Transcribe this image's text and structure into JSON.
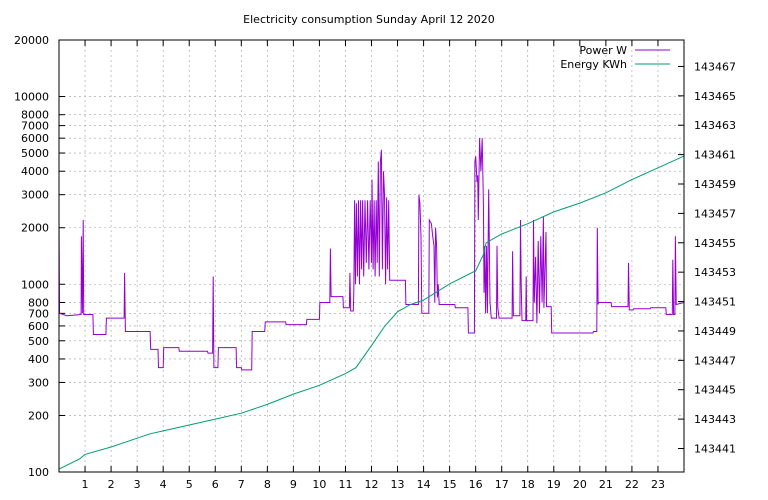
{
  "chart_data": {
    "type": "line",
    "title": "Electricity consumption Sunday April 12 2020",
    "xlabel": "",
    "ylabel": "",
    "xlim": [
      0,
      24
    ],
    "ylim": [
      100,
      20000
    ],
    "yscale": "log",
    "y2lim": [
      143439.4,
      143468.8
    ],
    "grid": true,
    "legend_position": "top-right",
    "x_ticks": [
      1,
      2,
      3,
      4,
      5,
      6,
      7,
      8,
      9,
      10,
      11,
      12,
      13,
      14,
      15,
      16,
      17,
      18,
      19,
      20,
      21,
      22,
      23
    ],
    "y_ticks": [
      {
        "value": 100,
        "label": "100"
      },
      {
        "value": 200,
        "label": "200"
      },
      {
        "value": 300,
        "label": "300"
      },
      {
        "value": 400,
        "label": "400"
      },
      {
        "value": 500,
        "label": "500"
      },
      {
        "value": 600,
        "label": "600"
      },
      {
        "value": 700,
        "label": "700"
      },
      {
        "value": 800,
        "label": "800"
      },
      {
        "value": 1000,
        "label": "1000"
      },
      {
        "value": 2000,
        "label": "2000"
      },
      {
        "value": 3000,
        "label": "3000"
      },
      {
        "value": 4000,
        "label": "4000"
      },
      {
        "value": 5000,
        "label": "5000"
      },
      {
        "value": 6000,
        "label": "6000"
      },
      {
        "value": 7000,
        "label": "7000"
      },
      {
        "value": 8000,
        "label": "8000"
      },
      {
        "value": 10000,
        "label": "10000"
      },
      {
        "value": 20000,
        "label": "20000"
      }
    ],
    "y2_ticks": [
      143441,
      143443,
      143445,
      143447,
      143449,
      143451,
      143453,
      143455,
      143457,
      143459,
      143461,
      143463,
      143465,
      143467
    ],
    "series": [
      {
        "name": "Power W",
        "axis": "left",
        "color": "#9400d3",
        "points": [
          [
            0,
            2200
          ],
          [
            0.02,
            700
          ],
          [
            0.3,
            680
          ],
          [
            0.85,
            690
          ],
          [
            0.86,
            1800
          ],
          [
            0.9,
            700
          ],
          [
            0.93,
            2200
          ],
          [
            0.95,
            690
          ],
          [
            1.3,
            690
          ],
          [
            1.32,
            540
          ],
          [
            1.8,
            540
          ],
          [
            1.82,
            660
          ],
          [
            2.5,
            660
          ],
          [
            2.52,
            1150
          ],
          [
            2.55,
            560
          ],
          [
            3.5,
            560
          ],
          [
            3.52,
            450
          ],
          [
            3.8,
            450
          ],
          [
            3.82,
            360
          ],
          [
            4.0,
            360
          ],
          [
            4.02,
            460
          ],
          [
            4.6,
            460
          ],
          [
            4.62,
            440
          ],
          [
            5.7,
            440
          ],
          [
            5.72,
            430
          ],
          [
            5.9,
            430
          ],
          [
            5.92,
            1100
          ],
          [
            5.95,
            360
          ],
          [
            6.1,
            360
          ],
          [
            6.12,
            460
          ],
          [
            6.8,
            460
          ],
          [
            6.82,
            360
          ],
          [
            7.0,
            360
          ],
          [
            7.02,
            350
          ],
          [
            7.4,
            350
          ],
          [
            7.42,
            560
          ],
          [
            7.9,
            560
          ],
          [
            7.92,
            630
          ],
          [
            8.7,
            630
          ],
          [
            8.72,
            610
          ],
          [
            9.5,
            610
          ],
          [
            9.52,
            650
          ],
          [
            10.0,
            650
          ],
          [
            10.02,
            800
          ],
          [
            10.4,
            800
          ],
          [
            10.42,
            1550
          ],
          [
            10.45,
            860
          ],
          [
            10.9,
            860
          ],
          [
            10.92,
            750
          ],
          [
            11.15,
            750
          ],
          [
            11.17,
            1150
          ],
          [
            11.2,
            720
          ],
          [
            11.3,
            720
          ],
          [
            11.32,
            900
          ],
          [
            11.35,
            2800
          ],
          [
            11.38,
            1000
          ],
          [
            11.42,
            2700
          ],
          [
            11.46,
            1100
          ],
          [
            11.5,
            2800
          ],
          [
            11.54,
            1000
          ],
          [
            11.58,
            2800
          ],
          [
            11.62,
            1200
          ],
          [
            11.66,
            2800
          ],
          [
            11.7,
            1100
          ],
          [
            11.75,
            2800
          ],
          [
            11.8,
            1300
          ],
          [
            11.85,
            2800
          ],
          [
            11.9,
            1200
          ],
          [
            11.95,
            2800
          ],
          [
            12.0,
            1300
          ],
          [
            12.02,
            3600
          ],
          [
            12.06,
            1200
          ],
          [
            12.1,
            2800
          ],
          [
            12.14,
            1100
          ],
          [
            12.18,
            2800
          ],
          [
            12.22,
            1300
          ],
          [
            12.26,
            4500
          ],
          [
            12.3,
            1100
          ],
          [
            12.34,
            4500
          ],
          [
            12.38,
            5200
          ],
          [
            12.42,
            1200
          ],
          [
            12.46,
            4000
          ],
          [
            12.5,
            3000
          ],
          [
            12.54,
            1000
          ],
          [
            12.58,
            2900
          ],
          [
            12.62,
            1200
          ],
          [
            12.66,
            2800
          ],
          [
            12.7,
            1050
          ],
          [
            13.3,
            1050
          ],
          [
            13.32,
            780
          ],
          [
            13.8,
            780
          ],
          [
            13.82,
            3000
          ],
          [
            13.86,
            2700
          ],
          [
            13.9,
            1800
          ],
          [
            13.93,
            700
          ],
          [
            14.2,
            700
          ],
          [
            14.22,
            2200
          ],
          [
            14.3,
            2100
          ],
          [
            14.35,
            1800
          ],
          [
            14.4,
            1600
          ],
          [
            14.43,
            800
          ],
          [
            14.46,
            2000
          ],
          [
            14.5,
            1600
          ],
          [
            14.53,
            850
          ],
          [
            14.56,
            1000
          ],
          [
            14.6,
            780
          ],
          [
            15.2,
            780
          ],
          [
            15.22,
            750
          ],
          [
            15.7,
            750
          ],
          [
            15.72,
            550
          ],
          [
            15.95,
            550
          ],
          [
            15.97,
            4500
          ],
          [
            16.0,
            4800
          ],
          [
            16.05,
            3500
          ],
          [
            16.08,
            3800
          ],
          [
            16.1,
            2200
          ],
          [
            16.15,
            6000
          ],
          [
            16.2,
            4000
          ],
          [
            16.25,
            6000
          ],
          [
            16.3,
            2500
          ],
          [
            16.32,
            900
          ],
          [
            16.35,
            1600
          ],
          [
            16.38,
            700
          ],
          [
            16.42,
            1600
          ],
          [
            16.45,
            700
          ],
          [
            16.5,
            3200
          ],
          [
            16.55,
            800
          ],
          [
            16.6,
            660
          ],
          [
            16.8,
            660
          ],
          [
            16.82,
            1600
          ],
          [
            16.85,
            750
          ],
          [
            16.9,
            660
          ],
          [
            17.4,
            660
          ],
          [
            17.42,
            1500
          ],
          [
            17.45,
            680
          ],
          [
            17.7,
            680
          ],
          [
            17.72,
            2200
          ],
          [
            17.75,
            1000
          ],
          [
            17.78,
            640
          ],
          [
            17.92,
            640
          ],
          [
            17.94,
            1100
          ],
          [
            17.96,
            640
          ],
          [
            18.2,
            640
          ],
          [
            18.22,
            2200
          ],
          [
            18.25,
            800
          ],
          [
            18.3,
            1400
          ],
          [
            18.35,
            620
          ],
          [
            18.4,
            1700
          ],
          [
            18.45,
            700
          ],
          [
            18.5,
            1800
          ],
          [
            18.55,
            800
          ],
          [
            18.6,
            2300
          ],
          [
            18.62,
            750
          ],
          [
            18.7,
            1900
          ],
          [
            18.72,
            760
          ],
          [
            18.9,
            760
          ],
          [
            18.92,
            550
          ],
          [
            20.5,
            550
          ],
          [
            20.52,
            560
          ],
          [
            20.65,
            560
          ],
          [
            20.67,
            2000
          ],
          [
            20.7,
            780
          ],
          [
            20.72,
            800
          ],
          [
            21.2,
            800
          ],
          [
            21.22,
            760
          ],
          [
            21.85,
            760
          ],
          [
            21.87,
            1300
          ],
          [
            21.9,
            730
          ],
          [
            22.05,
            730
          ],
          [
            22.07,
            740
          ],
          [
            22.7,
            740
          ],
          [
            22.72,
            750
          ],
          [
            23.3,
            750
          ],
          [
            23.32,
            690
          ],
          [
            23.55,
            690
          ],
          [
            23.57,
            1350
          ],
          [
            23.6,
            690
          ],
          [
            23.65,
            690
          ],
          [
            23.67,
            1800
          ],
          [
            23.7,
            780
          ],
          [
            24.0,
            800
          ]
        ]
      },
      {
        "name": "Energy KWh",
        "axis": "right",
        "color": "#009e73",
        "points": [
          [
            0,
            143439.6
          ],
          [
            0.8,
            143440.3
          ],
          [
            1.0,
            143440.6
          ],
          [
            2.0,
            143441.1
          ],
          [
            3.0,
            143441.7
          ],
          [
            3.5,
            143442.0
          ],
          [
            4.0,
            143442.2
          ],
          [
            5.0,
            143442.6
          ],
          [
            6.0,
            143443.0
          ],
          [
            7.0,
            143443.4
          ],
          [
            8.0,
            143444.0
          ],
          [
            9.0,
            143444.7
          ],
          [
            10.0,
            143445.3
          ],
          [
            11.0,
            143446.1
          ],
          [
            11.4,
            143446.5
          ],
          [
            12.0,
            143448.0
          ],
          [
            12.5,
            143449.3
          ],
          [
            13.0,
            143450.3
          ],
          [
            13.5,
            143450.8
          ],
          [
            14.0,
            143451.1
          ],
          [
            15.0,
            143452.2
          ],
          [
            16.0,
            143453.1
          ],
          [
            16.3,
            143454.2
          ],
          [
            16.4,
            143455.0
          ],
          [
            17.0,
            143455.6
          ],
          [
            18.0,
            143456.3
          ],
          [
            19.0,
            143457.1
          ],
          [
            20.0,
            143457.7
          ],
          [
            21.0,
            143458.4
          ],
          [
            22.0,
            143459.3
          ],
          [
            23.0,
            143460.1
          ],
          [
            24.0,
            143460.9
          ]
        ]
      }
    ]
  }
}
